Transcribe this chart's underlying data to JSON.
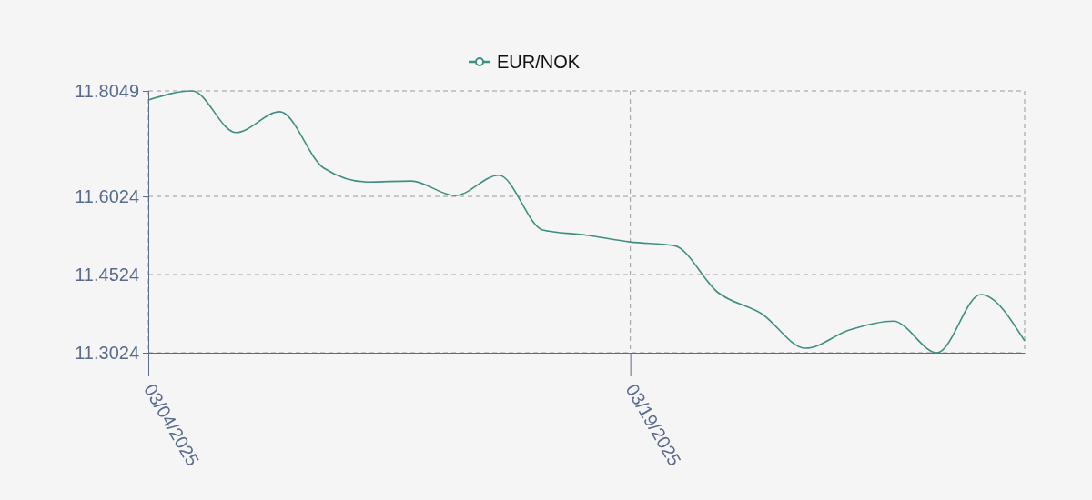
{
  "chart_data": {
    "type": "line",
    "categories": [
      "03/04/2025",
      null,
      null,
      null,
      null,
      null,
      null,
      null,
      null,
      null,
      null,
      "03/19/2025",
      null,
      null,
      null,
      null,
      null,
      null,
      null,
      null,
      null
    ],
    "series": [
      {
        "name": "EUR/NOK",
        "color": "#3f8f82",
        "values": [
          11.7875,
          11.8049,
          11.725,
          11.765,
          11.657,
          11.63,
          11.632,
          11.604,
          11.643,
          11.538,
          11.528,
          11.515,
          11.508,
          11.418,
          11.377,
          11.311,
          11.346,
          11.363,
          11.3024,
          11.414,
          11.325
        ]
      }
    ],
    "ylim": [
      11.3024,
      11.8049
    ],
    "yticks": [
      11.3024,
      11.4524,
      11.6024,
      11.8049
    ],
    "grid": true,
    "legend": "top",
    "marker": "none",
    "line_style": "solid"
  }
}
